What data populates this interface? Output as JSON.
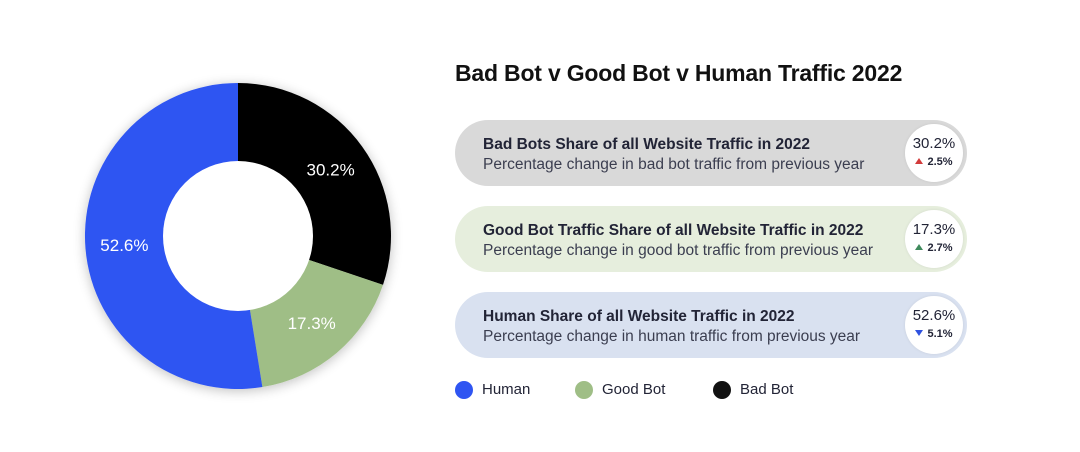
{
  "chart_data": {
    "type": "pie",
    "title": "Bad Bot v Good Bot v Human Traffic 2022",
    "labels": [
      "Bad Bot",
      "Good Bot",
      "Human"
    ],
    "values": [
      30.2,
      17.3,
      52.6
    ],
    "value_labels": [
      "30.2%",
      "17.3%",
      "52.6%"
    ],
    "colors": [
      "#000000",
      "#9fbe86",
      "#2f55f2"
    ],
    "legend": [
      "Human",
      "Good Bot",
      "Bad Bot"
    ],
    "legend_placement": "bottom"
  },
  "cards": [
    {
      "heading": "Bad Bots Share of all Website Traffic in 2022",
      "subtext": "Percentage change in bad bot traffic from previous year",
      "value": "30.2%",
      "change": "2.5%",
      "direction": "up",
      "bg": "#d9d9d9"
    },
    {
      "heading": "Good Bot Traffic Share of all Website Traffic in 2022",
      "subtext": "Percentage change in good bot traffic from previous year",
      "value": "17.3%",
      "change": "2.7%",
      "direction": "up",
      "bg": "#e6eedd"
    },
    {
      "heading": "Human Share of all Website Traffic in 2022",
      "subtext": "Percentage change in human traffic from previous year",
      "value": "52.6%",
      "change": "5.1%",
      "direction": "down",
      "bg": "#d9e1f0"
    }
  ],
  "legend": [
    {
      "label": "Human",
      "color": "#2f55f2"
    },
    {
      "label": "Good Bot",
      "color": "#9fbe86"
    },
    {
      "label": "Bad Bot",
      "color": "#111111"
    }
  ],
  "arrow_colors": {
    "bad_bot": "#d23b3b",
    "good_bot": "#3f8a5c",
    "human": "#2f52e0"
  }
}
